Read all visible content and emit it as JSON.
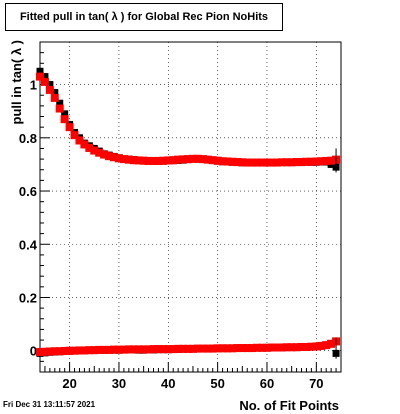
{
  "chart_data": {
    "type": "scatter",
    "title": "Fitted pull in tan( λ ) for Global Rec Pion NoHits",
    "xlabel": "No. of Fit Points",
    "ylabel": "pull in tan( λ )",
    "xlim": [
      14,
      75
    ],
    "ylim": [
      -0.08,
      1.16
    ],
    "x_ticks": [
      20,
      30,
      40,
      50,
      60,
      70
    ],
    "y_ticks": [
      0,
      0.2,
      0.4,
      0.6,
      0.8,
      1
    ],
    "grid": true,
    "series": [
      {
        "color": "#000000",
        "marker": "square",
        "role": "sigma",
        "x": [
          14,
          15,
          16,
          17,
          18,
          19,
          20,
          21,
          22,
          23,
          24,
          25,
          26,
          27,
          28,
          29,
          30,
          31,
          32,
          33,
          34,
          35,
          36,
          37,
          38,
          39,
          40,
          41,
          42,
          43,
          44,
          45,
          46,
          47,
          48,
          49,
          50,
          51,
          52,
          53,
          54,
          55,
          56,
          57,
          58,
          59,
          60,
          61,
          62,
          63,
          64,
          65,
          66,
          67,
          68,
          69,
          70,
          71,
          72,
          73,
          74
        ],
        "y": [
          1.05,
          1.03,
          1.0,
          0.97,
          0.93,
          0.89,
          0.85,
          0.82,
          0.8,
          0.78,
          0.77,
          0.76,
          0.75,
          0.74,
          0.735,
          0.73,
          0.725,
          0.72,
          0.72,
          0.718,
          0.716,
          0.715,
          0.714,
          0.713,
          0.712,
          0.712,
          0.713,
          0.714,
          0.715,
          0.716,
          0.718,
          0.72,
          0.72,
          0.719,
          0.717,
          0.715,
          0.712,
          0.71,
          0.709,
          0.708,
          0.707,
          0.706,
          0.706,
          0.706,
          0.706,
          0.706,
          0.706,
          0.706,
          0.706,
          0.707,
          0.707,
          0.707,
          0.707,
          0.707,
          0.708,
          0.708,
          0.708,
          0.709,
          0.709,
          0.7,
          0.69
        ]
      },
      {
        "color": "#ff0000",
        "marker": "square",
        "role": "sigma-fit",
        "x": [
          14,
          15,
          16,
          17,
          18,
          19,
          20,
          21,
          22,
          23,
          24,
          25,
          26,
          27,
          28,
          29,
          30,
          31,
          32,
          33,
          34,
          35,
          36,
          37,
          38,
          39,
          40,
          41,
          42,
          43,
          44,
          45,
          46,
          47,
          48,
          49,
          50,
          51,
          52,
          53,
          54,
          55,
          56,
          57,
          58,
          59,
          60,
          61,
          62,
          63,
          64,
          65,
          66,
          67,
          68,
          69,
          70,
          71,
          72,
          73,
          74
        ],
        "y": [
          1.03,
          1.01,
          0.98,
          0.95,
          0.91,
          0.87,
          0.84,
          0.81,
          0.79,
          0.775,
          0.762,
          0.752,
          0.744,
          0.737,
          0.731,
          0.727,
          0.723,
          0.72,
          0.718,
          0.716,
          0.715,
          0.714,
          0.713,
          0.713,
          0.713,
          0.714,
          0.715,
          0.716,
          0.718,
          0.719,
          0.72,
          0.721,
          0.721,
          0.72,
          0.718,
          0.716,
          0.714,
          0.712,
          0.711,
          0.71,
          0.709,
          0.708,
          0.707,
          0.707,
          0.707,
          0.707,
          0.707,
          0.707,
          0.707,
          0.708,
          0.708,
          0.708,
          0.709,
          0.709,
          0.71,
          0.71,
          0.711,
          0.712,
          0.713,
          0.714,
          0.718
        ]
      },
      {
        "color": "#000000",
        "marker": "square",
        "role": "mean",
        "x": [
          14,
          15,
          16,
          17,
          18,
          19,
          20,
          21,
          22,
          23,
          24,
          25,
          26,
          27,
          28,
          29,
          30,
          31,
          32,
          33,
          34,
          35,
          36,
          37,
          38,
          39,
          40,
          41,
          42,
          43,
          44,
          45,
          46,
          47,
          48,
          49,
          50,
          51,
          52,
          53,
          54,
          55,
          56,
          57,
          58,
          59,
          60,
          61,
          62,
          63,
          64,
          65,
          66,
          67,
          68,
          69,
          70,
          71,
          72,
          73,
          74
        ],
        "y": [
          -0.01,
          -0.008,
          -0.006,
          -0.005,
          -0.004,
          -0.003,
          -0.002,
          -0.001,
          0.0,
          0.0,
          0.001,
          0.001,
          0.002,
          0.002,
          0.003,
          0.002,
          0.002,
          0.003,
          0.003,
          0.003,
          0.002,
          0.002,
          0.003,
          0.003,
          0.004,
          0.004,
          0.004,
          0.005,
          0.005,
          0.006,
          0.006,
          0.007,
          0.007,
          0.007,
          0.008,
          0.008,
          0.008,
          0.008,
          0.008,
          0.009,
          0.009,
          0.009,
          0.009,
          0.01,
          0.01,
          0.01,
          0.01,
          0.011,
          0.011,
          0.011,
          0.012,
          0.012,
          0.012,
          0.013,
          0.013,
          0.014,
          0.015,
          0.017,
          0.02,
          0.025,
          -0.01
        ]
      },
      {
        "color": "#ff0000",
        "marker": "square",
        "role": "mean-fit",
        "x": [
          14,
          15,
          16,
          17,
          18,
          19,
          20,
          21,
          22,
          23,
          24,
          25,
          26,
          27,
          28,
          29,
          30,
          31,
          32,
          33,
          34,
          35,
          36,
          37,
          38,
          39,
          40,
          41,
          42,
          43,
          44,
          45,
          46,
          47,
          48,
          49,
          50,
          51,
          52,
          53,
          54,
          55,
          56,
          57,
          58,
          59,
          60,
          61,
          62,
          63,
          64,
          65,
          66,
          67,
          68,
          69,
          70,
          71,
          72,
          73,
          74
        ],
        "y": [
          -0.005,
          -0.004,
          -0.003,
          -0.002,
          -0.002,
          -0.001,
          0.0,
          0.0,
          0.001,
          0.001,
          0.002,
          0.002,
          0.003,
          0.003,
          0.003,
          0.004,
          0.004,
          0.004,
          0.005,
          0.005,
          0.005,
          0.005,
          0.005,
          0.006,
          0.006,
          0.006,
          0.006,
          0.006,
          0.007,
          0.007,
          0.007,
          0.007,
          0.008,
          0.008,
          0.008,
          0.008,
          0.009,
          0.009,
          0.009,
          0.009,
          0.01,
          0.01,
          0.01,
          0.01,
          0.011,
          0.011,
          0.011,
          0.012,
          0.012,
          0.012,
          0.013,
          0.013,
          0.013,
          0.014,
          0.014,
          0.015,
          0.016,
          0.018,
          0.021,
          0.026,
          0.035
        ]
      }
    ]
  },
  "footer": {
    "timestamp": "Fri Dec 31 13:11:57 2021"
  }
}
